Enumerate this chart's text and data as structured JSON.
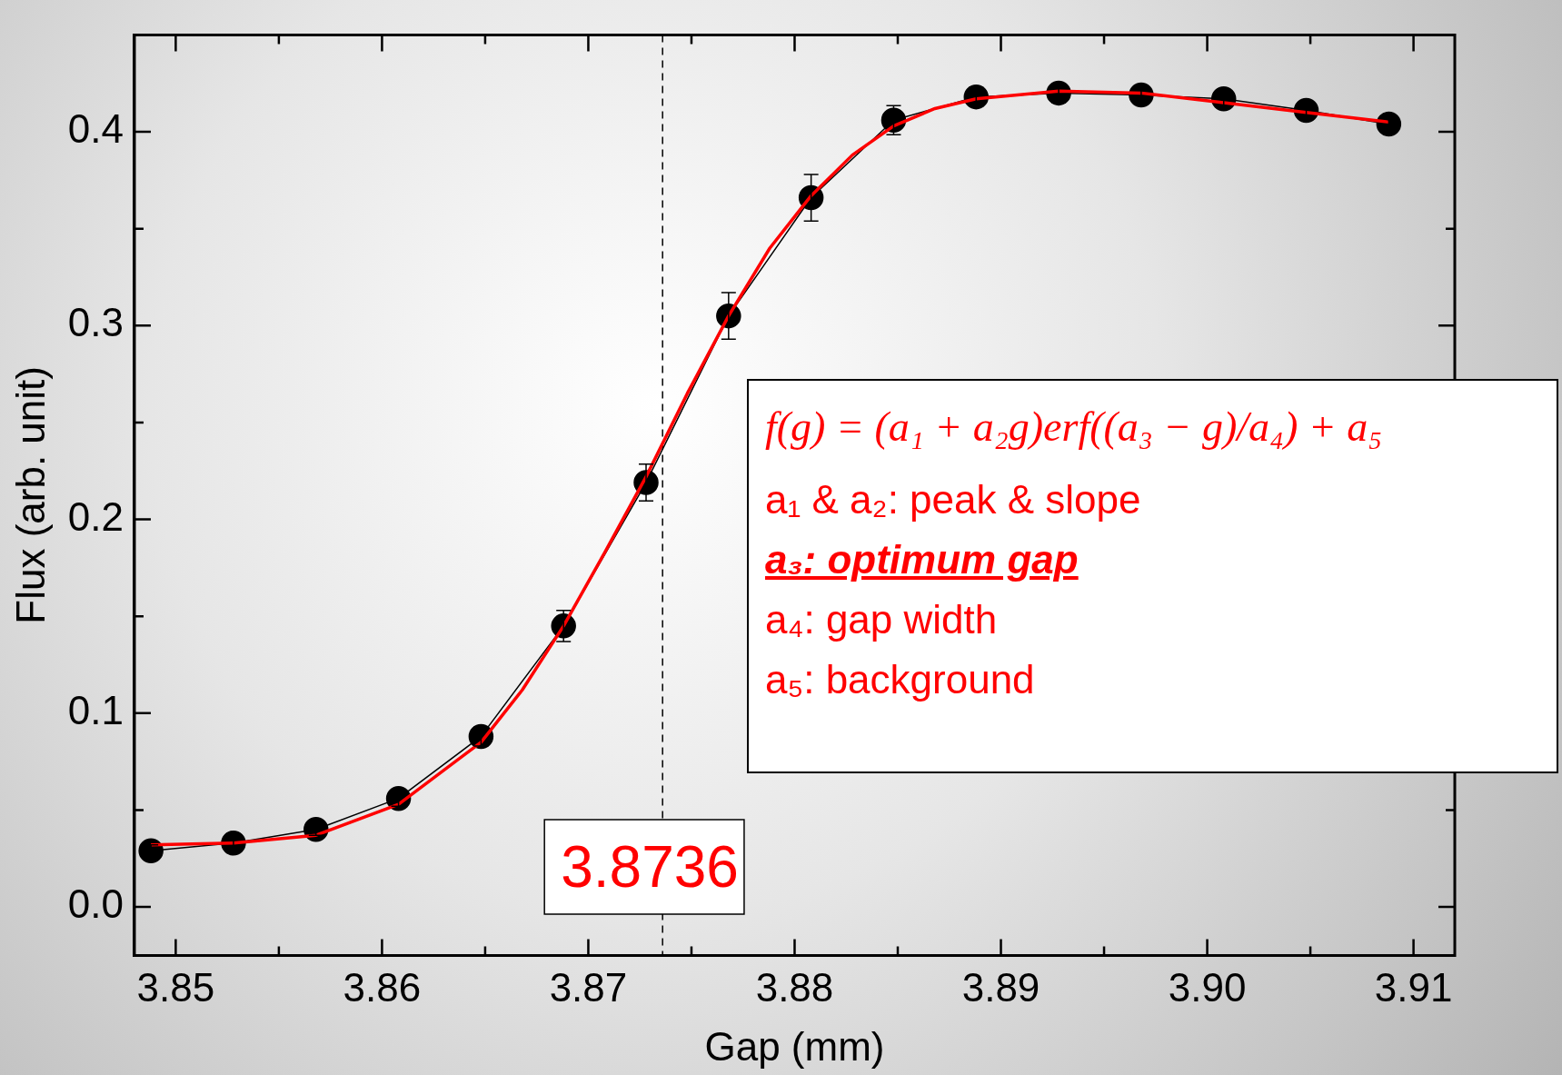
{
  "chart_data": {
    "type": "line",
    "xlabel": "Gap (mm)",
    "ylabel": "Flux (arb. unit)",
    "xlim": [
      3.848,
      3.912
    ],
    "ylim": [
      -0.025,
      0.45
    ],
    "xticks": [
      3.85,
      {
        "value": 3.855,
        "label": null
      },
      3.86,
      {
        "value": 3.865,
        "label": null
      },
      3.87,
      {
        "value": 3.875,
        "label": null
      },
      3.88,
      {
        "value": 3.885,
        "label": null
      },
      3.89,
      {
        "value": 3.895,
        "label": null
      },
      {
        "value": 3.9,
        "label": "3.90"
      },
      {
        "value": 3.905,
        "label": null
      },
      3.91
    ],
    "yticks": [
      {
        "value": 0,
        "label": "0.0"
      },
      {
        "value": 0.05,
        "label": null
      },
      0.1,
      {
        "value": 0.15,
        "label": null
      },
      0.2,
      {
        "value": 0.25,
        "label": null
      },
      0.3,
      {
        "value": 0.35,
        "label": null
      },
      0.4
    ],
    "grid": false,
    "legend": false,
    "series": [
      {
        "color": "#000000",
        "marker": "circle",
        "x": [
          3.8488,
          3.8528,
          3.8568,
          3.8608,
          3.8648,
          3.8688,
          3.8728,
          3.8768,
          3.8808,
          3.8848,
          3.8888,
          3.8928,
          3.8968,
          3.9008,
          3.9048,
          3.9088
        ],
        "values": [
          0.029,
          0.033,
          0.04,
          0.056,
          0.088,
          0.145,
          0.219,
          0.305,
          0.366,
          0.406,
          0.418,
          0.42,
          0.419,
          0.417,
          0.411,
          0.404
        ],
        "errors": [
          0.003,
          0.003,
          0.003,
          0.004,
          0.005,
          0.008,
          0.0095,
          0.012,
          0.012,
          0.0075,
          0.005,
          0.005,
          0.005,
          0.004,
          0.004,
          0.004
        ]
      },
      {
        "color": "#ff0000",
        "marker": "none",
        "x": [
          3.8488,
          3.8528,
          3.8568,
          3.8608,
          3.8648,
          3.8668,
          3.8688,
          3.8708,
          3.8728,
          3.8748,
          3.8768,
          3.8788,
          3.8808,
          3.8828,
          3.8848,
          3.8868,
          3.8888,
          3.8928,
          3.8968,
          3.9008,
          3.9048,
          3.9088
        ],
        "values": [
          0.032,
          0.033,
          0.037,
          0.053,
          0.085,
          0.112,
          0.145,
          0.183,
          0.222,
          0.265,
          0.305,
          0.34,
          0.367,
          0.388,
          0.403,
          0.412,
          0.417,
          0.421,
          0.42,
          0.415,
          0.41,
          0.405
        ]
      }
    ],
    "ref_lines": [
      {
        "axis": "x",
        "value": 3.8736,
        "label": "3.8736",
        "color": "#000000",
        "line_style": "dashed"
      }
    ],
    "annotations": [
      "f(g) = (a₁ + a₂g)erf((a₃ − g)/a₄) + a₅",
      "a₁ & a₂: peak & slope",
      "a₃: optimum gap",
      "a₄: gap width",
      "a₅: background"
    ]
  }
}
